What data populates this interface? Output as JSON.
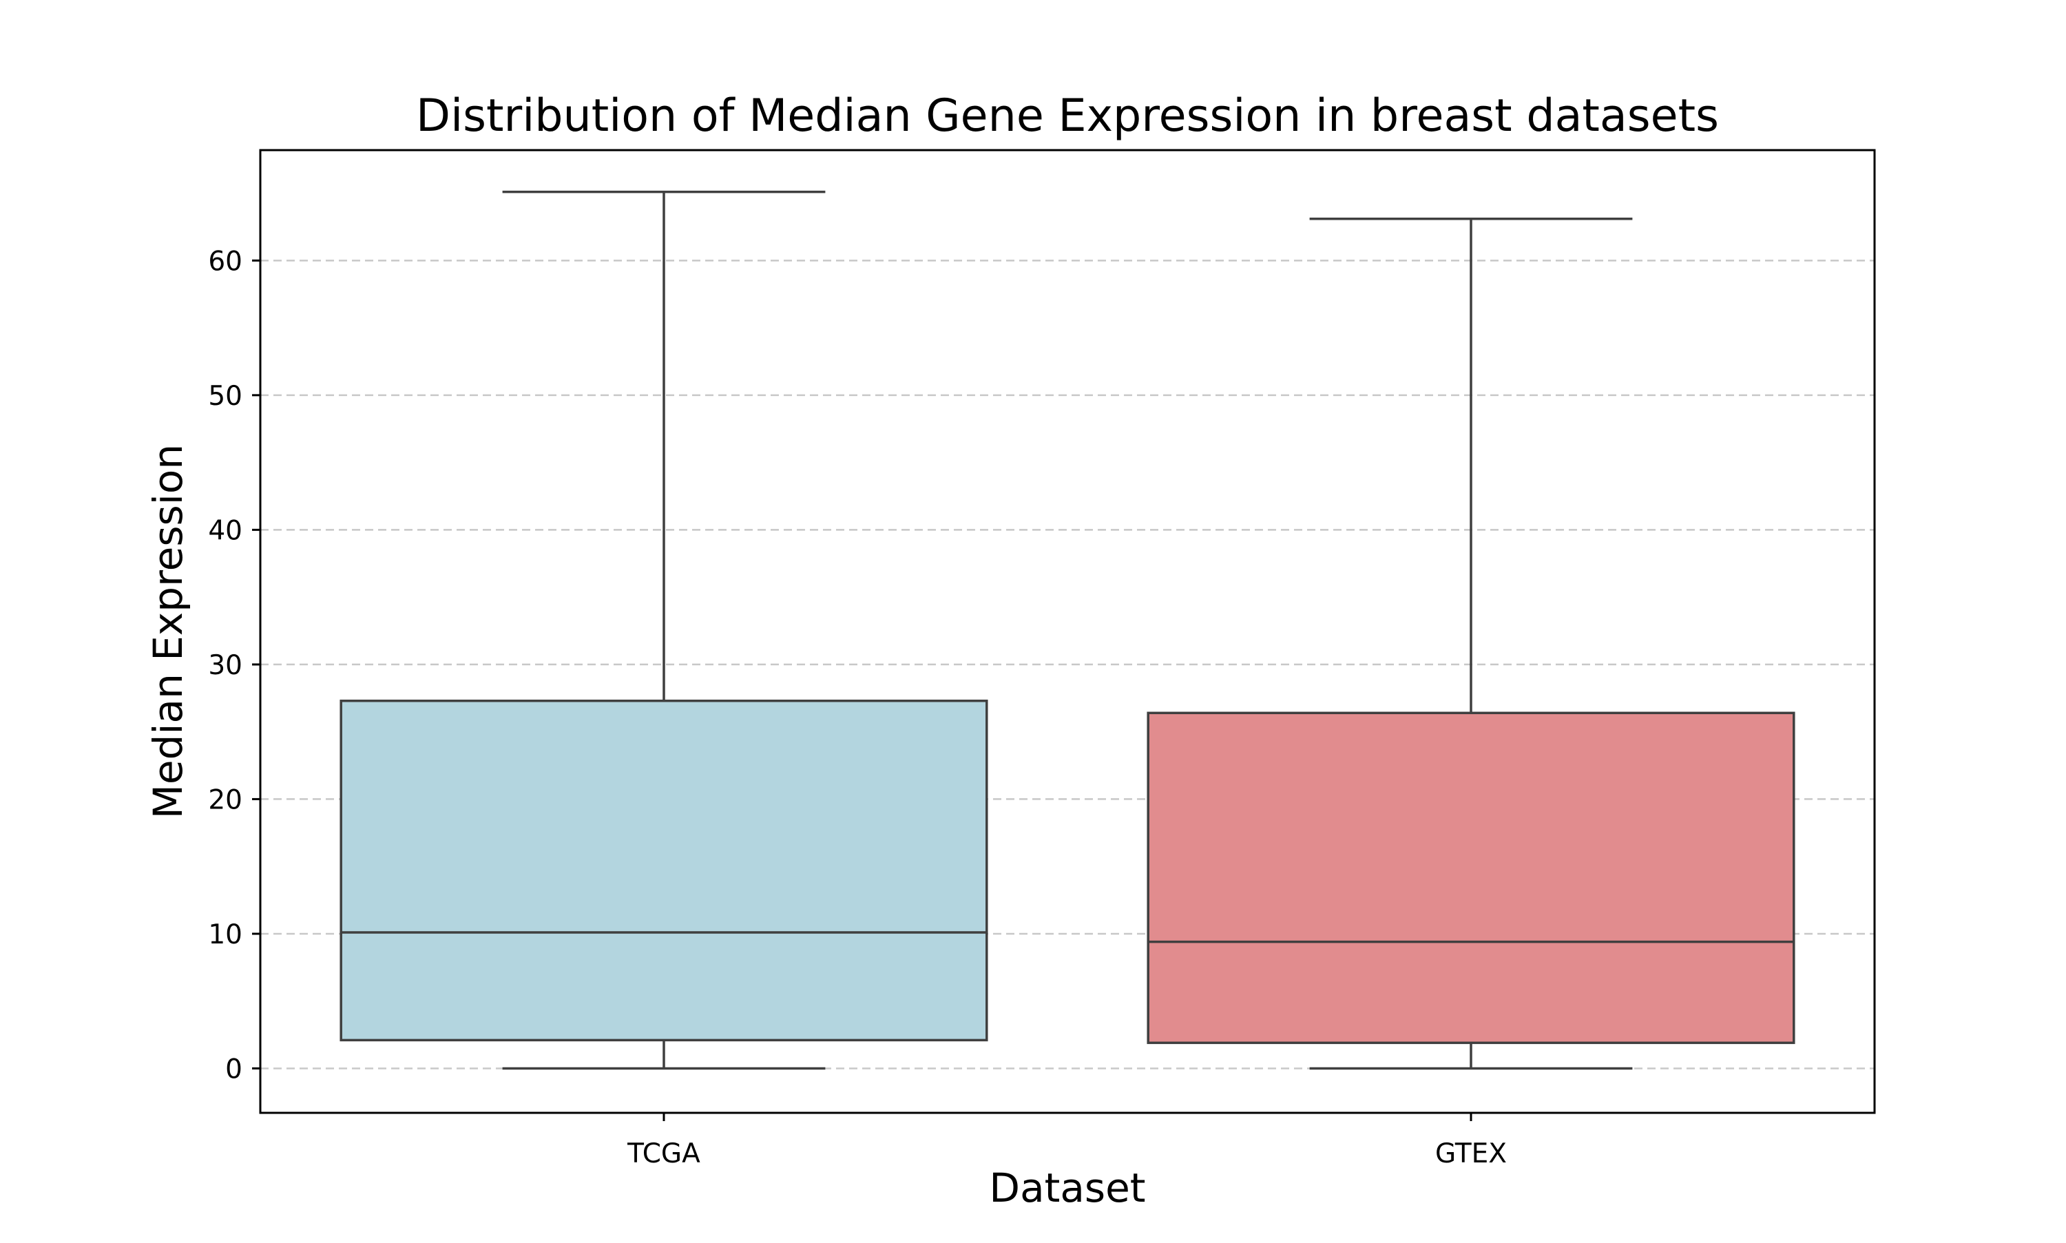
{
  "chart_data": {
    "type": "box",
    "title": "Distribution of Median Gene Expression in breast datasets",
    "xlabel": "Dataset",
    "ylabel": "Median Expression",
    "ylim": [
      -3.3,
      68.2
    ],
    "yticks": [
      0,
      10,
      20,
      30,
      40,
      50,
      60
    ],
    "grid": {
      "y": true,
      "x": false,
      "style": "dashed"
    },
    "legend": "none",
    "categories": [
      "TCGA",
      "GTEX"
    ],
    "boxes": [
      {
        "name": "TCGA",
        "whisker_low": 0.0,
        "q1": 2.1,
        "median": 10.1,
        "q3": 27.3,
        "whisker_high": 65.1,
        "color": "#b3d5df"
      },
      {
        "name": "GTEX",
        "whisker_low": 0.0,
        "q1": 1.9,
        "median": 9.4,
        "q3": 26.4,
        "whisker_high": 63.1,
        "color": "#e18c8e"
      }
    ]
  }
}
